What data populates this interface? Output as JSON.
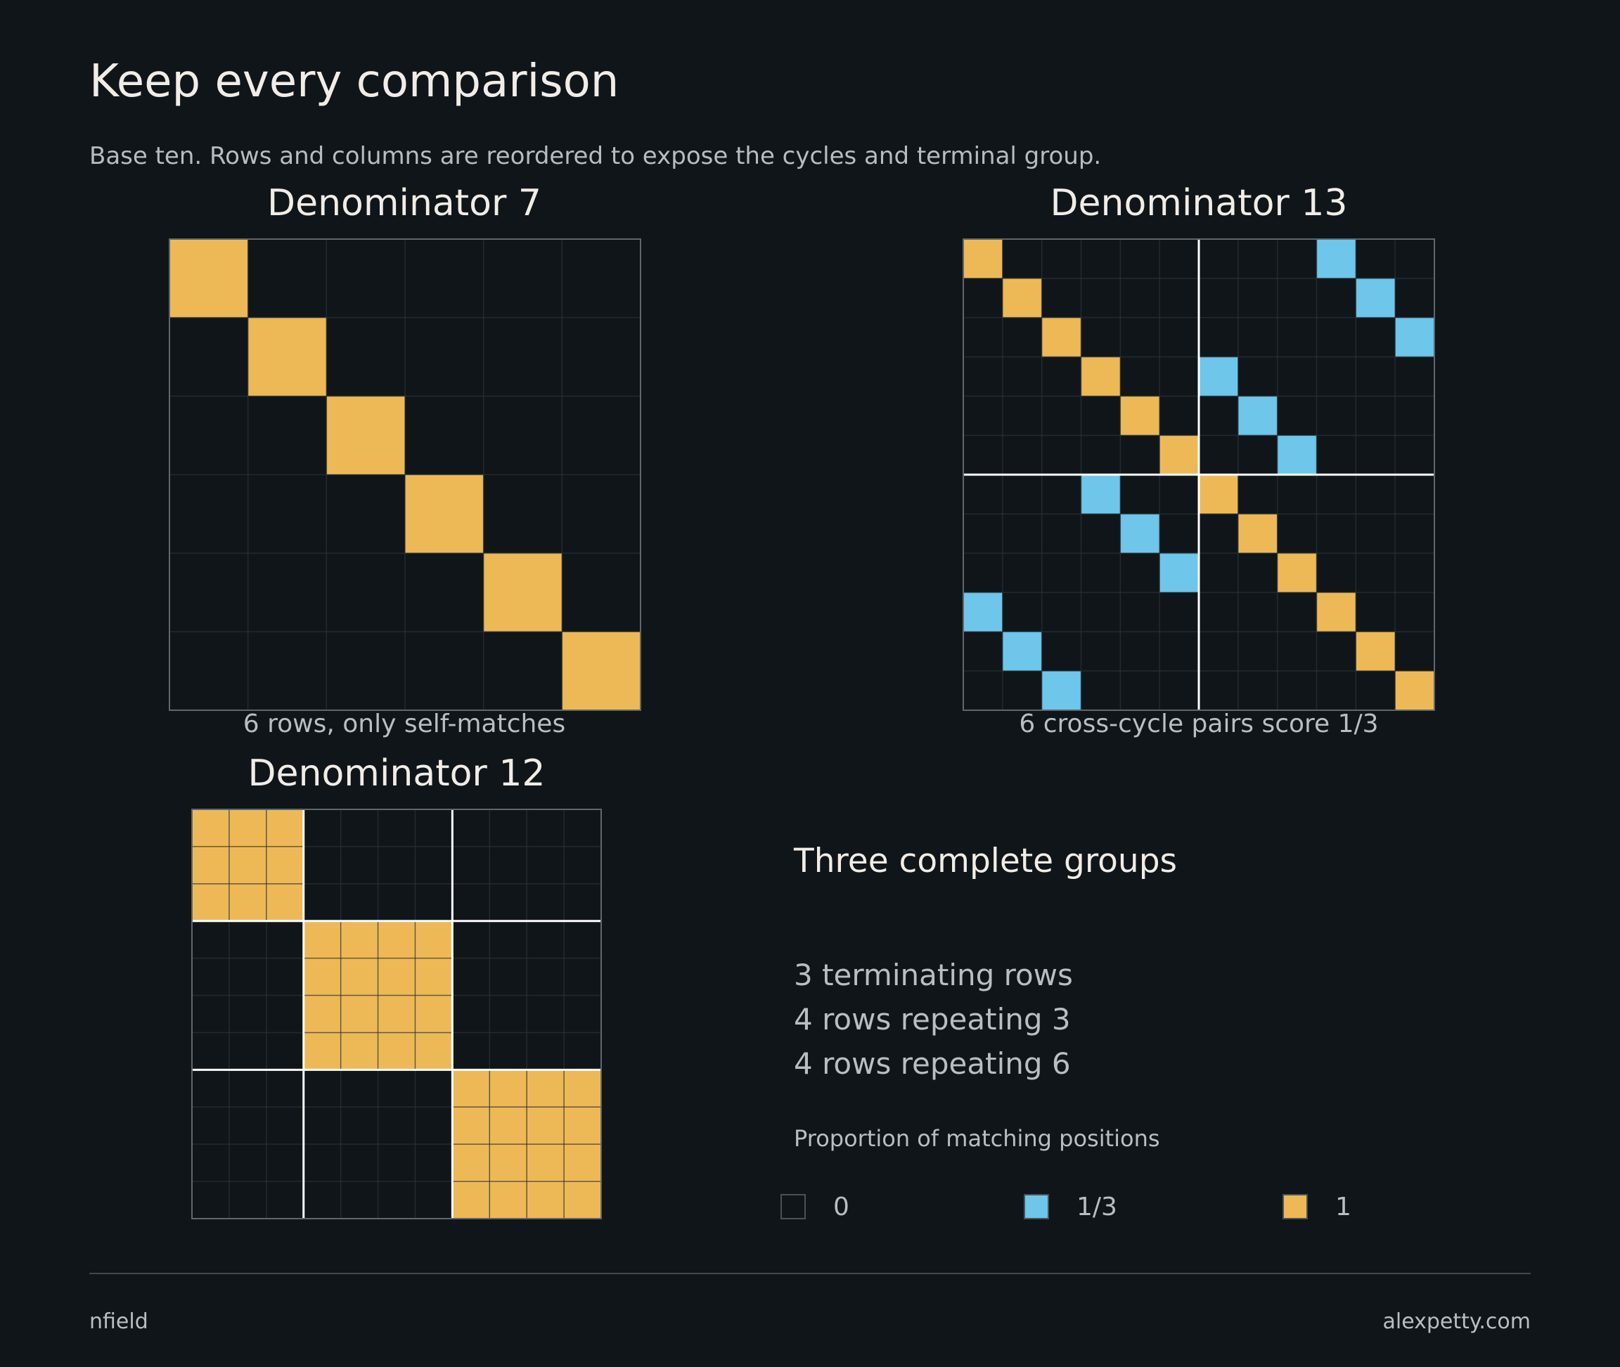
{
  "title": "Keep every comparison",
  "subtitle": "Base ten. Rows and columns are reordered to expose the cycles and terminal group.",
  "colors": {
    "background": "#10151a",
    "zero": "#10151a",
    "one_third": "#6ec6ea",
    "one": "#edb957",
    "grid": "#2c3338",
    "divider": "#ffffff",
    "frame": "#5f676c"
  },
  "chart_data": [
    {
      "type": "heatmap",
      "title": "Denominator 7",
      "caption": "6 rows, only self-matches",
      "size": 6,
      "group_breaks": [],
      "cells": [
        {
          "row": 0,
          "col": 0,
          "value": 1
        },
        {
          "row": 1,
          "col": 1,
          "value": 1
        },
        {
          "row": 2,
          "col": 2,
          "value": 1
        },
        {
          "row": 3,
          "col": 3,
          "value": 1
        },
        {
          "row": 4,
          "col": 4,
          "value": 1
        },
        {
          "row": 5,
          "col": 5,
          "value": 1
        }
      ]
    },
    {
      "type": "heatmap",
      "title": "Denominator 13",
      "caption": "6 cross-cycle pairs score 1/3",
      "size": 12,
      "group_breaks": [
        6
      ],
      "cells": [
        {
          "row": 0,
          "col": 0,
          "value": 1
        },
        {
          "row": 1,
          "col": 1,
          "value": 1
        },
        {
          "row": 2,
          "col": 2,
          "value": 1
        },
        {
          "row": 3,
          "col": 3,
          "value": 1
        },
        {
          "row": 4,
          "col": 4,
          "value": 1
        },
        {
          "row": 5,
          "col": 5,
          "value": 1
        },
        {
          "row": 6,
          "col": 6,
          "value": 1
        },
        {
          "row": 7,
          "col": 7,
          "value": 1
        },
        {
          "row": 8,
          "col": 8,
          "value": 1
        },
        {
          "row": 9,
          "col": 9,
          "value": 1
        },
        {
          "row": 10,
          "col": 10,
          "value": 1
        },
        {
          "row": 11,
          "col": 11,
          "value": 1
        },
        {
          "row": 0,
          "col": 9,
          "value": 0.3333
        },
        {
          "row": 1,
          "col": 10,
          "value": 0.3333
        },
        {
          "row": 2,
          "col": 11,
          "value": 0.3333
        },
        {
          "row": 3,
          "col": 6,
          "value": 0.3333
        },
        {
          "row": 4,
          "col": 7,
          "value": 0.3333
        },
        {
          "row": 5,
          "col": 8,
          "value": 0.3333
        },
        {
          "row": 6,
          "col": 3,
          "value": 0.3333
        },
        {
          "row": 7,
          "col": 4,
          "value": 0.3333
        },
        {
          "row": 8,
          "col": 5,
          "value": 0.3333
        },
        {
          "row": 9,
          "col": 0,
          "value": 0.3333
        },
        {
          "row": 10,
          "col": 1,
          "value": 0.3333
        },
        {
          "row": 11,
          "col": 2,
          "value": 0.3333
        }
      ]
    },
    {
      "type": "heatmap",
      "title": "Denominator 12",
      "caption": "",
      "size": 11,
      "group_breaks": [
        3,
        7
      ],
      "blocks": [
        {
          "start": 0,
          "end": 3,
          "value": 1
        },
        {
          "start": 3,
          "end": 7,
          "value": 1
        },
        {
          "start": 7,
          "end": 11,
          "value": 1
        }
      ]
    }
  ],
  "groups": {
    "title": "Three complete groups",
    "lines": [
      "3 terminating rows",
      "4 rows repeating 3",
      "4 rows repeating 6"
    ]
  },
  "legend": {
    "title": "Proportion of matching positions",
    "items": [
      {
        "label": "0",
        "color": "#10151a"
      },
      {
        "label": "1/3",
        "color": "#6ec6ea"
      },
      {
        "label": "1",
        "color": "#edb957"
      }
    ]
  },
  "footer": {
    "left": "nfield",
    "right": "alexpetty.com"
  }
}
